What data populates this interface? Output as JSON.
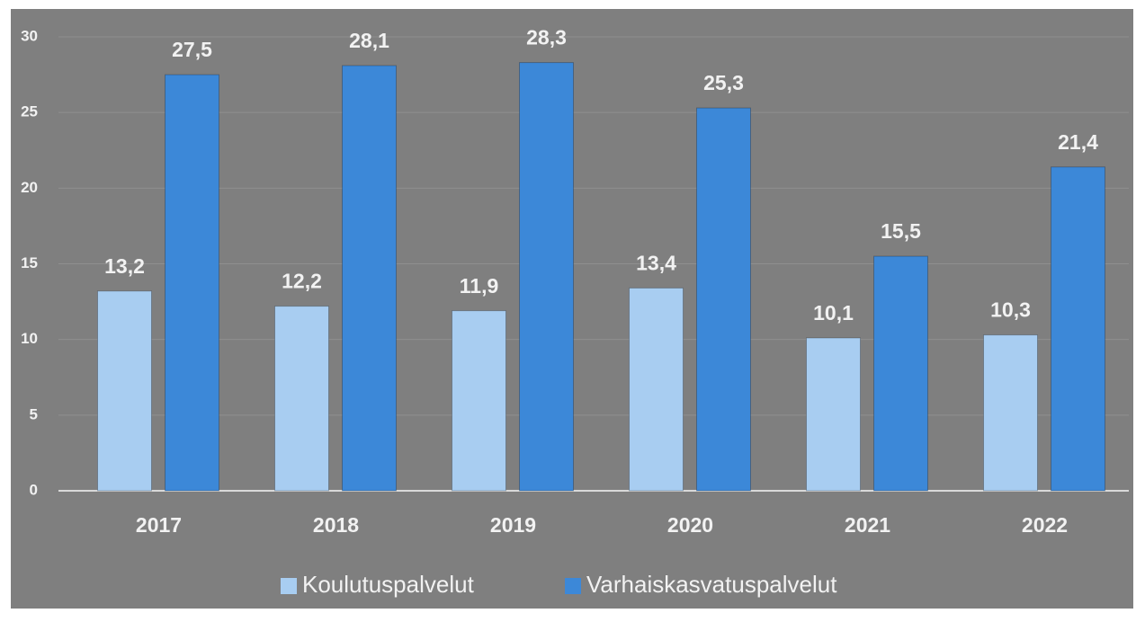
{
  "chart_data": {
    "type": "bar",
    "categories": [
      "2017",
      "2018",
      "2019",
      "2020",
      "2021",
      "2022"
    ],
    "series": [
      {
        "name": "Koulutuspalvelut",
        "color": "#a8cdf1",
        "values": [
          13.2,
          12.2,
          11.9,
          13.4,
          10.1,
          10.3
        ],
        "value_labels": [
          "13,2",
          "12,2",
          "11,9",
          "13,4",
          "10,1",
          "10,3"
        ]
      },
      {
        "name": "Varhaiskasvatuspalvelut",
        "color": "#3c88d8",
        "values": [
          27.5,
          28.1,
          28.3,
          25.3,
          15.5,
          21.4
        ],
        "value_labels": [
          "27,5",
          "28,1",
          "28,3",
          "25,3",
          "15,5",
          "21,4"
        ]
      }
    ],
    "ylim": [
      0,
      30
    ],
    "yticks": [
      0,
      5,
      10,
      15,
      20,
      25,
      30
    ],
    "grid": true,
    "legend": "bottom"
  }
}
